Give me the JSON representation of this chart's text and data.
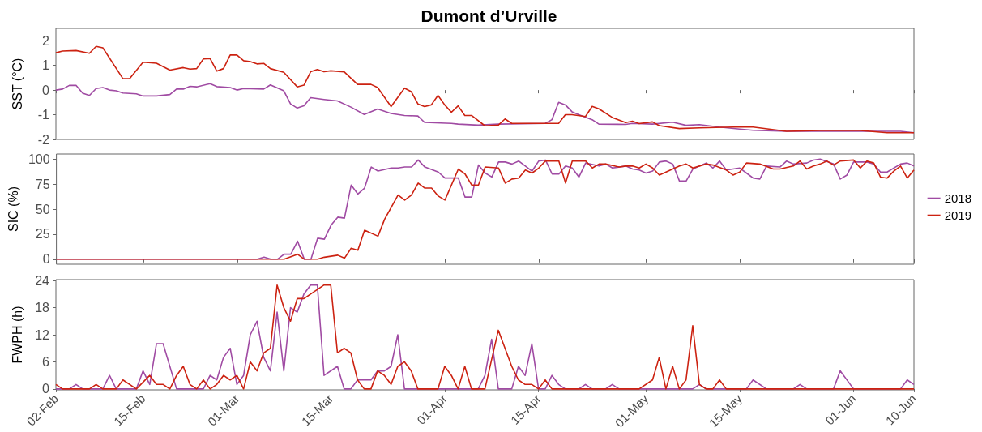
{
  "chart_data": [
    {
      "type": "line",
      "title": "Dumont d’Urville",
      "ylabel": "SST (°C)",
      "xlim": [
        "--02-02",
        "--06-10"
      ],
      "xticks": [
        {
          "value": "--02-02",
          "label": null
        },
        {
          "value": "--02-15",
          "label": null
        },
        {
          "value": "--03-01",
          "label": null
        },
        {
          "value": "--03-15",
          "label": null
        },
        {
          "value": "--04-01",
          "label": null
        },
        {
          "value": "--04-15",
          "label": null
        },
        {
          "value": "--05-01",
          "label": null
        },
        {
          "value": "--05-15",
          "label": null
        },
        {
          "value": "--06-01",
          "label": null
        },
        {
          "value": "--06-10",
          "label": null
        }
      ],
      "ylim": [
        -2,
        2.5
      ],
      "yticks": [
        -2,
        -1,
        0,
        1,
        2
      ],
      "tick_labels": "y",
      "marker": "none",
      "line_style": "solid",
      "series": [
        {
          "color": "#a04ba3",
          "x": [
            "--02-02",
            "--02-03",
            "--02-04",
            "--02-05",
            "--02-06",
            "--02-07",
            "--02-08",
            "--02-09",
            "--02-10",
            "--02-11",
            "--02-12",
            "--02-14",
            "--02-15",
            "--02-17",
            "--02-19",
            "--02-20",
            "--02-21",
            "--02-22",
            "--02-23",
            "--02-25",
            "--02-26",
            "--02-28",
            "--03-01",
            "--03-02",
            "--03-05",
            "--03-06",
            "--03-08",
            "--03-09",
            "--03-10",
            "--03-11",
            "--03-12",
            "--03-14",
            "--03-16",
            "--03-18",
            "--03-20",
            "--03-22",
            "--03-24",
            "--03-26",
            "--03-28",
            "--03-29",
            "--04-02",
            "--04-03",
            "--04-06",
            "--04-09",
            "--04-16",
            "--04-17",
            "--04-18",
            "--04-19",
            "--04-20",
            "--04-21",
            "--04-23",
            "--04-24",
            "--04-28",
            "--04-29",
            "--05-02",
            "--05-05",
            "--05-07",
            "--05-09",
            "--05-12",
            "--05-15",
            "--05-17",
            "--05-22",
            "--06-08",
            "--06-10"
          ],
          "values": [
            0,
            0.04,
            0.19,
            0.19,
            -0.13,
            -0.22,
            0.06,
            0.1,
            0,
            -0.03,
            -0.12,
            -0.15,
            -0.24,
            -0.24,
            -0.18,
            0.04,
            0.04,
            0.15,
            0.13,
            0.26,
            0.14,
            0.1,
            0,
            0.06,
            0.04,
            0.21,
            -0.03,
            -0.56,
            -0.73,
            -0.64,
            -0.31,
            -0.38,
            -0.44,
            -0.69,
            -0.99,
            -0.77,
            -0.95,
            -1.03,
            -1.05,
            -1.31,
            -1.35,
            -1.38,
            -1.42,
            -1.38,
            -1.35,
            -1.2,
            -0.5,
            -0.6,
            -0.88,
            -1.0,
            -1.2,
            -1.38,
            -1.39,
            -1.35,
            -1.38,
            -1.3,
            -1.43,
            -1.4,
            -1.5,
            -1.58,
            -1.63,
            -1.67,
            -1.67,
            -1.73
          ]
        },
        {
          "color": "#cc2211",
          "x": [
            "--02-02",
            "--02-03",
            "--02-05",
            "--02-07",
            "--02-08",
            "--02-09",
            "--02-12",
            "--02-13",
            "--02-15",
            "--02-17",
            "--02-19",
            "--02-21",
            "--02-22",
            "--02-23",
            "--02-24",
            "--02-25",
            "--02-26",
            "--02-27",
            "--02-28",
            "--03-01",
            "--03-02",
            "--03-03",
            "--03-04",
            "--03-05",
            "--03-06",
            "--03-08",
            "--03-10",
            "--03-11",
            "--03-12",
            "--03-13",
            "--03-14",
            "--03-15",
            "--03-17",
            "--03-19",
            "--03-21",
            "--03-22",
            "--03-24",
            "--03-26",
            "--03-27",
            "--03-28",
            "--03-29",
            "--03-30",
            "--03-31",
            "--04-01",
            "--04-02",
            "--04-03",
            "--04-04",
            "--04-05",
            "--04-07",
            "--04-09",
            "--04-10",
            "--04-11",
            "--04-18",
            "--04-19",
            "--04-20",
            "--04-22",
            "--04-23",
            "--04-24",
            "--04-26",
            "--04-28",
            "--04-29",
            "--04-30",
            "--05-02",
            "--05-03",
            "--05-06",
            "--05-09",
            "--05-14",
            "--05-17",
            "--05-22",
            "--05-27",
            "--06-02",
            "--06-06",
            "--06-10"
          ],
          "values": [
            1.51,
            1.58,
            1.6,
            1.49,
            1.77,
            1.71,
            0.46,
            0.46,
            1.13,
            1.09,
            0.81,
            0.91,
            0.85,
            0.87,
            1.26,
            1.28,
            0.77,
            0.87,
            1.42,
            1.42,
            1.19,
            1.15,
            1.06,
            1.08,
            0.87,
            0.72,
            0.13,
            0.2,
            0.74,
            0.83,
            0.74,
            0.78,
            0.74,
            0.23,
            0.23,
            0.1,
            -0.67,
            0.08,
            -0.06,
            -0.56,
            -0.67,
            -0.6,
            -0.22,
            -0.6,
            -0.9,
            -0.64,
            -1.03,
            -1.03,
            -1.45,
            -1.42,
            -1.17,
            -1.35,
            -1.35,
            -1.0,
            -1.0,
            -1.07,
            -0.66,
            -0.76,
            -1.11,
            -1.32,
            -1.26,
            -1.36,
            -1.29,
            -1.44,
            -1.56,
            -1.53,
            -1.5,
            -1.5,
            -1.67,
            -1.64,
            -1.64,
            -1.73,
            -1.73
          ]
        }
      ]
    },
    {
      "type": "line",
      "ylabel": "SIC (%)",
      "xlim": [
        "--02-02",
        "--06-10"
      ],
      "xticks": [
        {
          "value": "--02-02",
          "label": null
        },
        {
          "value": "--02-15",
          "label": null
        },
        {
          "value": "--03-01",
          "label": null
        },
        {
          "value": "--03-15",
          "label": null
        },
        {
          "value": "--04-01",
          "label": null
        },
        {
          "value": "--04-15",
          "label": null
        },
        {
          "value": "--05-01",
          "label": null
        },
        {
          "value": "--05-15",
          "label": null
        },
        {
          "value": "--06-01",
          "label": null
        },
        {
          "value": "--06-10",
          "label": null
        }
      ],
      "ylim": [
        -5,
        105
      ],
      "yticks": [
        0,
        25,
        50,
        75,
        100
      ],
      "tick_labels": "y",
      "legend": "right",
      "marker": "none",
      "line_style": "solid",
      "series": [
        {
          "name": "2018",
          "color": "#a04ba3",
          "x": [
            "--02-02",
            "--03-04",
            "--03-05",
            "--03-06",
            "--03-07",
            "--03-08",
            "--03-09",
            "--03-10",
            "--03-11",
            "--03-12",
            "--03-13",
            "--03-14",
            "--03-15",
            "--03-16",
            "--03-17",
            "--03-18",
            "--03-19",
            "--03-20",
            "--03-21",
            "--03-22",
            "--03-24",
            "--03-25",
            "--03-26",
            "--03-27",
            "--03-28",
            "--03-29",
            "--03-31",
            "--04-01",
            "--04-03",
            "--04-04",
            "--04-05",
            "--04-06",
            "--04-07",
            "--04-08",
            "--04-09",
            "--04-10",
            "--04-11",
            "--04-12",
            "--04-14",
            "--04-15",
            "--04-16",
            "--04-17",
            "--04-18",
            "--04-19",
            "--04-20",
            "--04-21",
            "--04-22",
            "--04-24",
            "--04-25",
            "--04-26",
            "--04-28",
            "--04-29",
            "--04-30",
            "--05-01",
            "--05-02",
            "--05-03",
            "--05-04",
            "--05-05",
            "--05-06",
            "--05-07",
            "--05-08",
            "--05-10",
            "--05-11",
            "--05-12",
            "--05-13",
            "--05-15",
            "--05-16",
            "--05-17",
            "--05-18",
            "--05-19",
            "--05-21",
            "--05-22",
            "--05-23",
            "--05-25",
            "--05-26",
            "--05-27",
            "--05-29",
            "--05-30",
            "--05-31",
            "--06-01",
            "--06-03",
            "--06-04",
            "--06-05",
            "--06-06",
            "--06-08",
            "--06-09",
            "--06-10"
          ],
          "values": [
            0,
            0,
            2,
            0,
            0,
            5,
            5,
            18,
            0,
            0,
            21,
            20,
            34,
            42,
            41,
            74,
            65,
            71,
            92,
            88,
            91,
            91,
            92,
            92,
            99,
            92,
            87,
            81,
            81,
            62,
            62,
            94,
            86,
            82,
            97,
            97,
            95,
            98,
            88,
            98,
            99,
            85,
            85,
            93,
            91,
            82,
            96,
            93,
            95,
            91,
            93,
            90,
            89,
            86,
            88,
            97,
            98,
            95,
            78,
            78,
            90,
            96,
            91,
            98,
            89,
            91,
            86,
            81,
            80,
            93,
            92,
            98,
            95,
            96,
            99,
            100,
            95,
            80,
            84,
            97,
            97,
            95,
            87,
            87,
            95,
            96,
            93
          ]
        },
        {
          "name": "2019",
          "color": "#cc2211",
          "x": [
            "--02-02",
            "--03-08",
            "--03-10",
            "--03-11",
            "--03-13",
            "--03-14",
            "--03-16",
            "--03-17",
            "--03-18",
            "--03-19",
            "--03-20",
            "--03-22",
            "--03-23",
            "--03-25",
            "--03-26",
            "--03-27",
            "--03-28",
            "--03-29",
            "--03-30",
            "--03-31",
            "--04-01",
            "--04-03",
            "--04-04",
            "--04-05",
            "--04-06",
            "--04-07",
            "--04-09",
            "--04-10",
            "--04-11",
            "--04-12",
            "--04-13",
            "--04-14",
            "--04-15",
            "--04-16",
            "--04-18",
            "--04-19",
            "--04-20",
            "--04-22",
            "--04-23",
            "--04-24",
            "--04-25",
            "--04-27",
            "--04-28",
            "--04-29",
            "--04-30",
            "--05-01",
            "--05-02",
            "--05-03",
            "--05-04",
            "--05-06",
            "--05-07",
            "--05-08",
            "--05-10",
            "--05-11",
            "--05-13",
            "--05-14",
            "--05-15",
            "--05-16",
            "--05-18",
            "--05-20",
            "--05-21",
            "--05-23",
            "--05-24",
            "--05-25",
            "--05-26",
            "--05-27",
            "--05-28",
            "--05-29",
            "--05-30",
            "--06-01",
            "--06-02",
            "--06-03",
            "--06-04",
            "--06-05",
            "--06-06",
            "--06-07",
            "--06-08",
            "--06-09",
            "--06-10"
          ],
          "values": [
            0,
            0,
            5,
            0,
            0,
            2,
            4,
            1,
            11,
            9,
            29,
            23,
            40,
            64,
            59,
            64,
            76,
            71,
            71,
            63,
            59,
            90,
            85,
            74,
            74,
            92,
            91,
            76,
            80,
            81,
            89,
            86,
            91,
            98,
            98,
            76,
            98,
            98,
            91,
            95,
            95,
            92,
            93,
            93,
            91,
            95,
            91,
            84,
            87,
            93,
            95,
            91,
            95,
            94,
            89,
            84,
            87,
            96,
            95,
            90,
            90,
            93,
            98,
            90,
            93,
            95,
            98,
            94,
            98,
            99,
            91,
            98,
            96,
            82,
            81,
            88,
            93,
            81,
            89
          ]
        }
      ]
    },
    {
      "type": "line",
      "ylabel": "FWPH (h)",
      "xlim": [
        "--02-02",
        "--06-10"
      ],
      "xticks": [
        {
          "value": "--02-02",
          "label": "02-Feb"
        },
        {
          "value": "--02-15",
          "label": "15-Feb"
        },
        {
          "value": "--03-01",
          "label": "01-Mar"
        },
        {
          "value": "--03-15",
          "label": "15-Mar"
        },
        {
          "value": "--04-01",
          "label": "01-Apr"
        },
        {
          "value": "--04-15",
          "label": "15-Apr"
        },
        {
          "value": "--05-01",
          "label": "01-May"
        },
        {
          "value": "--05-15",
          "label": "15-May"
        },
        {
          "value": "--06-01",
          "label": "01-Jun"
        },
        {
          "value": "--06-10",
          "label": "10-Jun"
        }
      ],
      "ylim": [
        -0.2,
        24.2
      ],
      "yticks": [
        0,
        6,
        12,
        18,
        24
      ],
      "marker": "none",
      "line_style": "solid",
      "series": [
        {
          "color": "#a04ba3",
          "x": [
            "--02-02",
            "--02-04",
            "--02-05",
            "--02-06",
            "--02-09",
            "--02-10",
            "--02-11",
            "--02-14",
            "--02-15",
            "--02-16",
            "--02-17",
            "--02-18",
            "--02-20",
            "--02-24",
            "--02-25",
            "--02-26",
            "--02-27",
            "--02-28",
            "--03-01",
            "--03-02",
            "--03-03",
            "--03-04",
            "--03-05",
            "--03-06",
            "--03-07",
            "--03-08",
            "--03-09",
            "--03-10",
            "--03-11",
            "--03-12",
            "--03-13",
            "--03-14",
            "--03-16",
            "--03-17",
            "--03-18",
            "--03-19",
            "--03-21",
            "--03-22",
            "--03-23",
            "--03-24",
            "--03-25",
            "--03-26",
            "--04-06",
            "--04-07",
            "--04-08",
            "--04-09",
            "--04-11",
            "--04-12",
            "--04-13",
            "--04-14",
            "--04-15",
            "--04-16",
            "--04-17",
            "--04-18",
            "--04-19",
            "--04-21",
            "--04-22",
            "--04-23",
            "--04-25",
            "--04-26",
            "--04-27",
            "--05-08",
            "--05-09",
            "--05-10",
            "--05-16",
            "--05-17",
            "--05-19",
            "--05-23",
            "--05-24",
            "--05-25",
            "--05-29",
            "--05-30",
            "--06-01",
            "--06-08",
            "--06-09",
            "--06-10"
          ],
          "values": [
            0,
            0,
            1,
            0,
            0,
            3,
            0,
            0,
            4,
            1,
            10,
            10,
            0,
            0,
            3,
            2,
            7,
            9,
            1,
            3,
            12,
            15,
            7,
            4,
            17,
            4,
            18,
            17,
            21,
            23,
            23,
            3,
            5,
            0,
            0,
            2,
            2,
            4,
            4,
            5,
            12,
            0,
            0,
            3,
            11,
            0,
            0,
            5,
            3,
            10,
            0,
            0,
            3,
            1,
            0,
            0,
            1,
            0,
            0,
            1,
            0,
            0,
            1,
            0,
            0,
            2,
            0,
            0,
            1,
            0,
            0,
            4,
            0,
            0,
            2,
            1
          ]
        },
        {
          "color": "#cc2211",
          "x": [
            "--02-02",
            "--02-03",
            "--02-07",
            "--02-08",
            "--02-09",
            "--02-11",
            "--02-12",
            "--02-14",
            "--02-16",
            "--02-17",
            "--02-18",
            "--02-19",
            "--02-20",
            "--02-21",
            "--02-22",
            "--02-23",
            "--02-24",
            "--02-25",
            "--02-26",
            "--02-27",
            "--02-28",
            "--03-01",
            "--03-02",
            "--03-03",
            "--03-04",
            "--03-05",
            "--03-06",
            "--03-07",
            "--03-08",
            "--03-09",
            "--03-10",
            "--03-11",
            "--03-14",
            "--03-15",
            "--03-16",
            "--03-17",
            "--03-18",
            "--03-19",
            "--03-20",
            "--03-21",
            "--03-22",
            "--03-23",
            "--03-24",
            "--03-25",
            "--03-26",
            "--03-27",
            "--03-28",
            "--03-31",
            "--04-01",
            "--04-02",
            "--04-03",
            "--04-04",
            "--04-05",
            "--04-07",
            "--04-09",
            "--04-10",
            "--04-11",
            "--04-12",
            "--04-13",
            "--04-14",
            "--04-15",
            "--04-16",
            "--04-17",
            "--04-30",
            "--05-02",
            "--05-03",
            "--05-04",
            "--05-05",
            "--05-06",
            "--05-07",
            "--05-08",
            "--05-09",
            "--05-10",
            "--05-11",
            "--05-12",
            "--05-13",
            "--06-10"
          ],
          "values": [
            1,
            0,
            0,
            1,
            0,
            0,
            2,
            0,
            3,
            1,
            1,
            0,
            3,
            5,
            1,
            0,
            2,
            0,
            1,
            3,
            2,
            3,
            0,
            6,
            4,
            8,
            9,
            23,
            18,
            15,
            20,
            20,
            23,
            23,
            8,
            9,
            8,
            2,
            0,
            0,
            4,
            3,
            1,
            5,
            6,
            4,
            0,
            0,
            5,
            3,
            0,
            5,
            0,
            0,
            13,
            9,
            5,
            2,
            1,
            1,
            0,
            2,
            0,
            0,
            2,
            7,
            0,
            5,
            0,
            2,
            14,
            1,
            0,
            0,
            2,
            0,
            0
          ]
        }
      ]
    }
  ]
}
